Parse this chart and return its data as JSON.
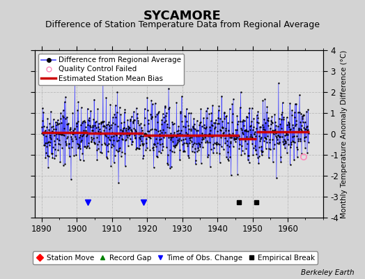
{
  "title": "SYCAMORE",
  "subtitle": "Difference of Station Temperature Data from Regional Average",
  "ylabel": "Monthly Temperature Anomaly Difference (°C)",
  "credit": "Berkeley Earth",
  "xlim": [
    1888,
    1970
  ],
  "ylim": [
    -4,
    4
  ],
  "yticks": [
    -4,
    -3,
    -2,
    -1,
    0,
    1,
    2,
    3,
    4
  ],
  "xticks": [
    1890,
    1900,
    1910,
    1920,
    1930,
    1940,
    1950,
    1960
  ],
  "seed": 42,
  "start_year": 1890,
  "end_year": 1966,
  "bias_segments": [
    {
      "start": 1890.0,
      "end": 1903.0,
      "bias": 0.08
    },
    {
      "start": 1903.0,
      "end": 1919.0,
      "bias": 0.05
    },
    {
      "start": 1919.0,
      "end": 1946.0,
      "bias": -0.05
    },
    {
      "start": 1946.0,
      "end": 1951.0,
      "bias": -0.22
    },
    {
      "start": 1951.0,
      "end": 1966.0,
      "bias": 0.1
    }
  ],
  "obs_change_years": [
    1903,
    1919
  ],
  "empirical_break_years": [
    1946,
    1951
  ],
  "qc_failed_year": 1964.5,
  "qc_failed_value": -1.1,
  "bg_color": "#d3d3d3",
  "plot_bg_color": "#e0e0e0",
  "line_color": "#4444ff",
  "bias_color": "#cc0000",
  "dot_color": "#000000",
  "title_fontsize": 13,
  "subtitle_fontsize": 9,
  "axis_label_fontsize": 7.5,
  "tick_fontsize": 8.5,
  "legend_fontsize": 7.5
}
